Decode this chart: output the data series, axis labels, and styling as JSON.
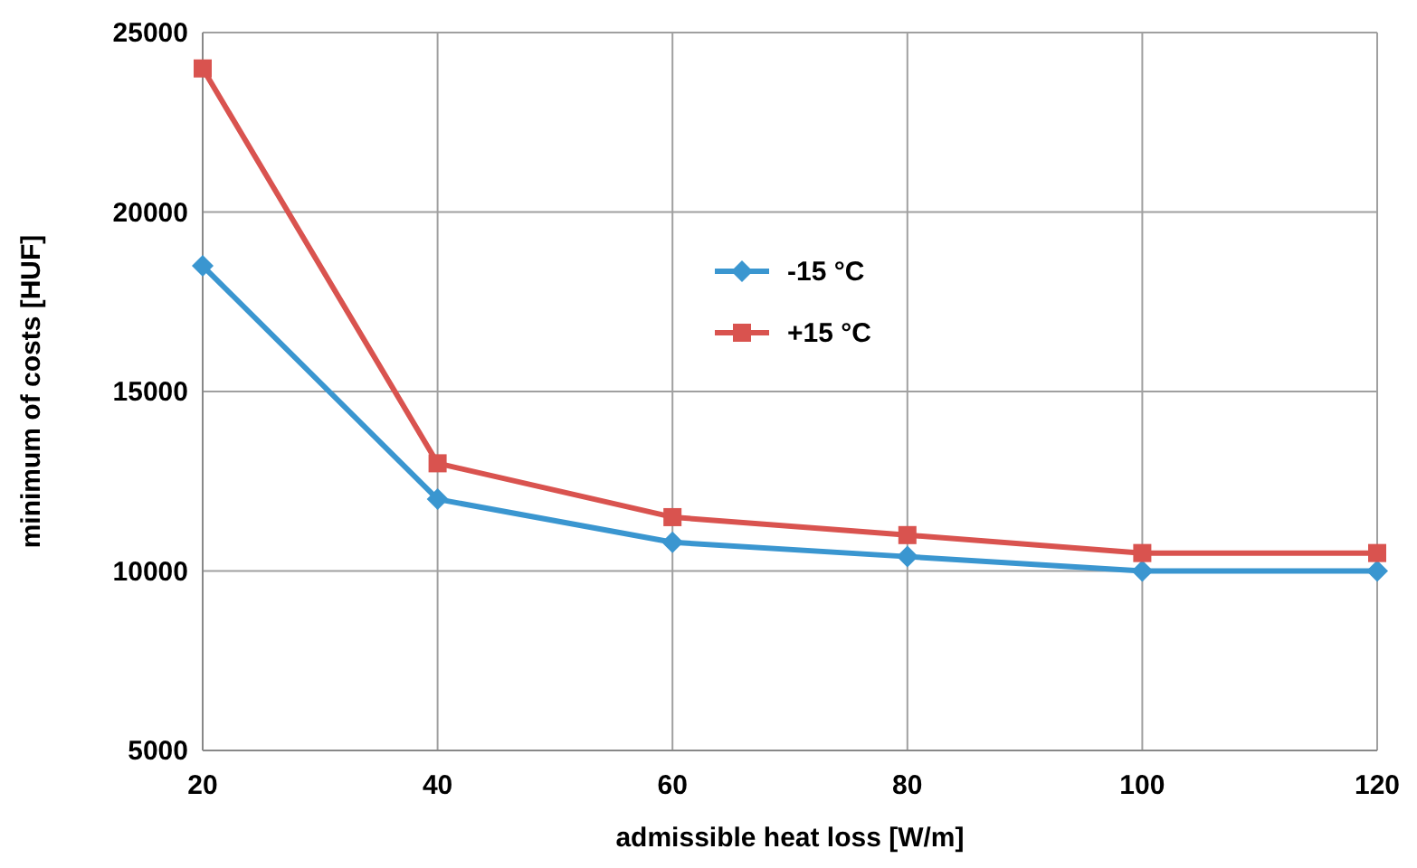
{
  "chart_data": {
    "type": "line",
    "xlabel": "admissible heat loss [W/m]",
    "ylabel": "minimum of costs [HUF]",
    "x": [
      20,
      40,
      60,
      80,
      100,
      120
    ],
    "series": [
      {
        "name": "-15 °C",
        "color": "#3a96d0",
        "marker": "diamond",
        "values": [
          18500,
          12000,
          10800,
          10400,
          10000,
          10000
        ]
      },
      {
        "name": "+15 °C",
        "color": "#d9534f",
        "marker": "square",
        "values": [
          24000,
          13000,
          11500,
          11000,
          10500,
          10500
        ]
      }
    ],
    "xlim": [
      20,
      120
    ],
    "xticks": [
      20,
      40,
      60,
      80,
      100,
      120
    ],
    "ylim": [
      5000,
      25000
    ],
    "yticks": [
      5000,
      10000,
      15000,
      20000,
      25000
    ],
    "grid": true,
    "legend": "top",
    "line_style": "solid"
  }
}
